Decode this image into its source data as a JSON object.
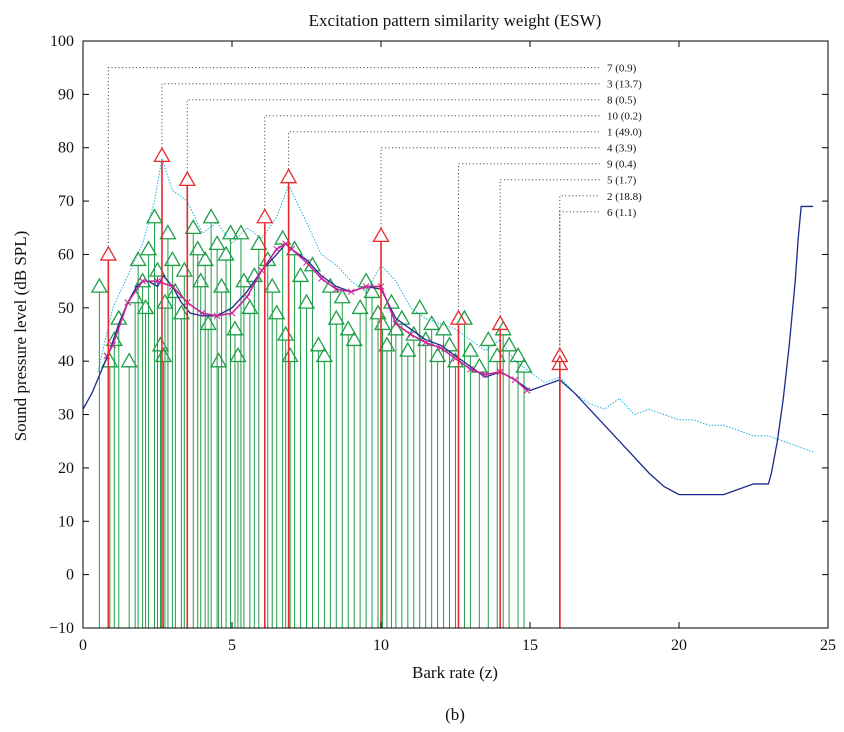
{
  "caption": "(b)",
  "chart_data": {
    "type": "line",
    "title": "Excitation pattern similarity weight (ESW)",
    "xlabel": "Bark rate (z)",
    "ylabel": "Sound pressure level (dB SPL)",
    "xlim": [
      0,
      25
    ],
    "ylim": [
      -10,
      100
    ],
    "xticks": [
      0,
      5,
      10,
      15,
      20,
      25
    ],
    "yticks": [
      -10,
      0,
      10,
      20,
      30,
      40,
      50,
      60,
      70,
      80,
      90,
      100
    ],
    "grid": false,
    "colors": {
      "threshold": "#1a2a8c",
      "spectrum": "#19b3df",
      "components": "#1f9e48",
      "selected": "#e8292e",
      "excitation": "#c8259a",
      "leader": "#333333"
    },
    "annotations": [
      {
        "label": "7 (0.9)",
        "x": 0.85,
        "y": 60,
        "line_y": 95
      },
      {
        "label": "3 (13.7)",
        "x": 2.65,
        "y": 78.5,
        "line_y": 92
      },
      {
        "label": "8 (0.5)",
        "x": 3.5,
        "y": 74,
        "line_y": 89
      },
      {
        "label": "10 (0.2)",
        "x": 6.1,
        "y": 67,
        "line_y": 86
      },
      {
        "label": "1 (49.0)",
        "x": 6.9,
        "y": 74.5,
        "line_y": 83
      },
      {
        "label": "4 (3.9)",
        "x": 10.0,
        "y": 63.5,
        "line_y": 80
      },
      {
        "label": "9 (0.4)",
        "x": 12.6,
        "y": 48,
        "line_y": 77
      },
      {
        "label": "5 (1.7)",
        "x": 14.0,
        "y": 47,
        "line_y": 74
      },
      {
        "label": "2 (18.8)",
        "x": 16.0,
        "y": 41,
        "line_y": 71
      },
      {
        "label": "6 (1.1)",
        "x": 16.0,
        "y": 39.5,
        "line_y": 68
      }
    ],
    "components": [
      {
        "x": 0.55,
        "y": 54
      },
      {
        "x": 0.9,
        "y": 40
      },
      {
        "x": 1.05,
        "y": 44
      },
      {
        "x": 1.2,
        "y": 48
      },
      {
        "x": 1.55,
        "y": 40
      },
      {
        "x": 1.75,
        "y": 52
      },
      {
        "x": 1.85,
        "y": 59
      },
      {
        "x": 2.0,
        "y": 55
      },
      {
        "x": 2.1,
        "y": 50
      },
      {
        "x": 2.2,
        "y": 61
      },
      {
        "x": 2.4,
        "y": 67
      },
      {
        "x": 2.5,
        "y": 57
      },
      {
        "x": 2.6,
        "y": 43
      },
      {
        "x": 2.7,
        "y": 41
      },
      {
        "x": 2.75,
        "y": 51
      },
      {
        "x": 2.85,
        "y": 64
      },
      {
        "x": 3.0,
        "y": 59
      },
      {
        "x": 3.1,
        "y": 53
      },
      {
        "x": 3.3,
        "y": 49
      },
      {
        "x": 3.4,
        "y": 57
      },
      {
        "x": 3.7,
        "y": 65
      },
      {
        "x": 3.85,
        "y": 61
      },
      {
        "x": 3.95,
        "y": 55
      },
      {
        "x": 4.1,
        "y": 59
      },
      {
        "x": 4.2,
        "y": 47
      },
      {
        "x": 4.3,
        "y": 67
      },
      {
        "x": 4.5,
        "y": 62
      },
      {
        "x": 4.55,
        "y": 40
      },
      {
        "x": 4.65,
        "y": 54
      },
      {
        "x": 4.8,
        "y": 60
      },
      {
        "x": 4.95,
        "y": 64
      },
      {
        "x": 5.1,
        "y": 46
      },
      {
        "x": 5.2,
        "y": 41
      },
      {
        "x": 5.3,
        "y": 64
      },
      {
        "x": 5.4,
        "y": 55
      },
      {
        "x": 5.6,
        "y": 50
      },
      {
        "x": 5.75,
        "y": 56
      },
      {
        "x": 5.9,
        "y": 62
      },
      {
        "x": 6.2,
        "y": 59
      },
      {
        "x": 6.35,
        "y": 54
      },
      {
        "x": 6.5,
        "y": 49
      },
      {
        "x": 6.7,
        "y": 63
      },
      {
        "x": 6.8,
        "y": 45
      },
      {
        "x": 6.95,
        "y": 41
      },
      {
        "x": 7.1,
        "y": 61
      },
      {
        "x": 7.3,
        "y": 56
      },
      {
        "x": 7.5,
        "y": 51
      },
      {
        "x": 7.7,
        "y": 58
      },
      {
        "x": 7.9,
        "y": 43
      },
      {
        "x": 8.1,
        "y": 41
      },
      {
        "x": 8.3,
        "y": 54
      },
      {
        "x": 8.5,
        "y": 48
      },
      {
        "x": 8.7,
        "y": 52
      },
      {
        "x": 8.9,
        "y": 46
      },
      {
        "x": 9.1,
        "y": 44
      },
      {
        "x": 9.3,
        "y": 50
      },
      {
        "x": 9.5,
        "y": 55
      },
      {
        "x": 9.7,
        "y": 53
      },
      {
        "x": 9.9,
        "y": 49
      },
      {
        "x": 10.05,
        "y": 47
      },
      {
        "x": 10.2,
        "y": 43
      },
      {
        "x": 10.35,
        "y": 51
      },
      {
        "x": 10.5,
        "y": 46
      },
      {
        "x": 10.7,
        "y": 48
      },
      {
        "x": 10.9,
        "y": 42
      },
      {
        "x": 11.1,
        "y": 45
      },
      {
        "x": 11.3,
        "y": 50
      },
      {
        "x": 11.5,
        "y": 44
      },
      {
        "x": 11.7,
        "y": 47
      },
      {
        "x": 11.9,
        "y": 41
      },
      {
        "x": 12.1,
        "y": 46
      },
      {
        "x": 12.3,
        "y": 43
      },
      {
        "x": 12.5,
        "y": 40
      },
      {
        "x": 12.8,
        "y": 48
      },
      {
        "x": 13.0,
        "y": 42
      },
      {
        "x": 13.3,
        "y": 39
      },
      {
        "x": 13.6,
        "y": 44
      },
      {
        "x": 13.9,
        "y": 41
      },
      {
        "x": 14.1,
        "y": 46
      },
      {
        "x": 14.3,
        "y": 43
      },
      {
        "x": 14.6,
        "y": 41
      },
      {
        "x": 14.8,
        "y": 39
      }
    ],
    "series": [
      {
        "x": [
          0,
          0.3,
          0.6,
          0.9,
          1.2,
          1.5,
          1.8,
          2.0,
          2.2,
          2.5,
          2.7,
          3.0,
          3.3,
          3.6,
          4.0,
          4.5,
          5.0,
          5.5,
          6.0,
          6.5,
          6.8,
          7.0,
          7.5,
          8.0,
          8.5,
          9.0,
          9.5,
          10.0,
          10.5,
          11.0,
          11.5,
          12.0,
          12.5,
          13.0,
          13.5,
          14.0,
          14.5,
          15.0,
          15.5,
          16.0,
          16.5,
          17.0,
          17.5,
          18.0,
          18.5,
          19.0,
          19.5,
          20.0,
          20.5,
          21.0,
          21.5,
          22.0,
          22.5,
          23.0,
          23.1,
          23.3,
          23.5,
          23.7,
          23.9,
          24.0,
          24.1,
          24.5
        ],
        "y": [
          31,
          34,
          38,
          42,
          47,
          51,
          54,
          55,
          55,
          54,
          56,
          54,
          51,
          49,
          48.5,
          48.5,
          50,
          53,
          57,
          60,
          62,
          61,
          59,
          56,
          54,
          53,
          54,
          53.5,
          48,
          46,
          44,
          43,
          41,
          39,
          37,
          38,
          36.5,
          34.5,
          35.5,
          36.5,
          34,
          31,
          28,
          25,
          22,
          19,
          16.5,
          15,
          15,
          15,
          15,
          16,
          17,
          17,
          19,
          25,
          33,
          43,
          55,
          63,
          69,
          69
        ]
      },
      {
        "x": [
          0.5,
          1.0,
          1.5,
          2.0,
          2.4,
          2.65,
          3.0,
          3.5,
          4.0,
          4.5,
          5.0,
          5.5,
          6.0,
          6.5,
          6.9,
          7.5,
          8.0,
          8.5,
          9.0,
          9.5,
          10.0,
          10.5,
          11.0,
          11.5,
          12.0,
          12.5,
          13.0,
          13.5,
          14.0,
          14.5,
          15.0,
          15.5,
          16.0,
          16.5,
          17.0,
          17.5,
          18.0,
          18.5,
          19.0,
          19.5,
          20.0,
          20.5,
          21.0,
          21.5,
          22.0,
          22.5,
          23.0,
          23.5,
          24.0,
          24.5
        ],
        "y": [
          38,
          50,
          56,
          62,
          70,
          78,
          72,
          70,
          64,
          66,
          62,
          65,
          63,
          67,
          73,
          66,
          60,
          58,
          55,
          53,
          58,
          55,
          50,
          48,
          47,
          46,
          44,
          42,
          44,
          40,
          38,
          36,
          37,
          34,
          32,
          31,
          33,
          30,
          31,
          30,
          29,
          29,
          28,
          28,
          27,
          26,
          26,
          25,
          24,
          23
        ]
      },
      {
        "x": [
          0.8,
          1.0,
          1.5,
          2.0,
          2.5,
          3.0,
          3.5,
          4.0,
          4.5,
          5.0,
          5.5,
          6.0,
          6.5,
          6.8,
          7.0,
          7.5,
          8.0,
          8.5,
          9.0,
          9.5,
          10.0,
          10.5,
          11.0,
          11.5,
          12.0,
          12.5,
          13.0,
          13.5,
          14.0,
          14.5,
          14.9
        ],
        "y": [
          41,
          43,
          51,
          55,
          55,
          54,
          51,
          49,
          48.5,
          49,
          52,
          57,
          61,
          62,
          61,
          58.5,
          55.5,
          53.5,
          53,
          54,
          54,
          47,
          45,
          43.5,
          42.5,
          40.5,
          38.5,
          37.5,
          38,
          36.5,
          34.5
        ]
      }
    ]
  }
}
